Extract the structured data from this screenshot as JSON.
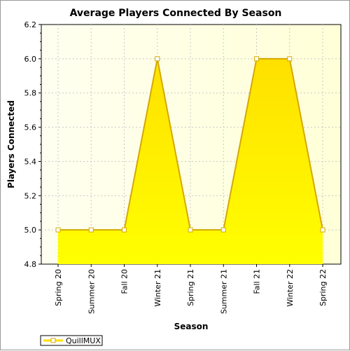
{
  "chart_data": {
    "type": "area",
    "title": "Average Players Connected By Season",
    "xlabel": "Season",
    "ylabel": "Players Connected",
    "categories": [
      "Spring 20",
      "Summer 20",
      "Fall 20",
      "Winter 21",
      "Spring 21",
      "Summer 21",
      "Fall 21",
      "Winter 22",
      "Spring 22"
    ],
    "series": [
      {
        "name": "QuillMUX",
        "values": [
          5.0,
          5.0,
          5.0,
          6.0,
          5.0,
          5.0,
          6.0,
          6.0,
          5.0
        ]
      }
    ],
    "ylim": [
      4.8,
      6.2
    ],
    "yticks": [
      "4.8",
      "5.0",
      "5.2",
      "5.4",
      "5.6",
      "5.8",
      "6.0",
      "6.2"
    ],
    "grid": true,
    "legend_position": "bottom-left",
    "colors": {
      "area_top": "#ffe000",
      "area_bottom": "#ffff00",
      "line": "#d4a800",
      "plot_bg_start": "#fffff0",
      "plot_bg_end": "#ffffd8"
    }
  }
}
